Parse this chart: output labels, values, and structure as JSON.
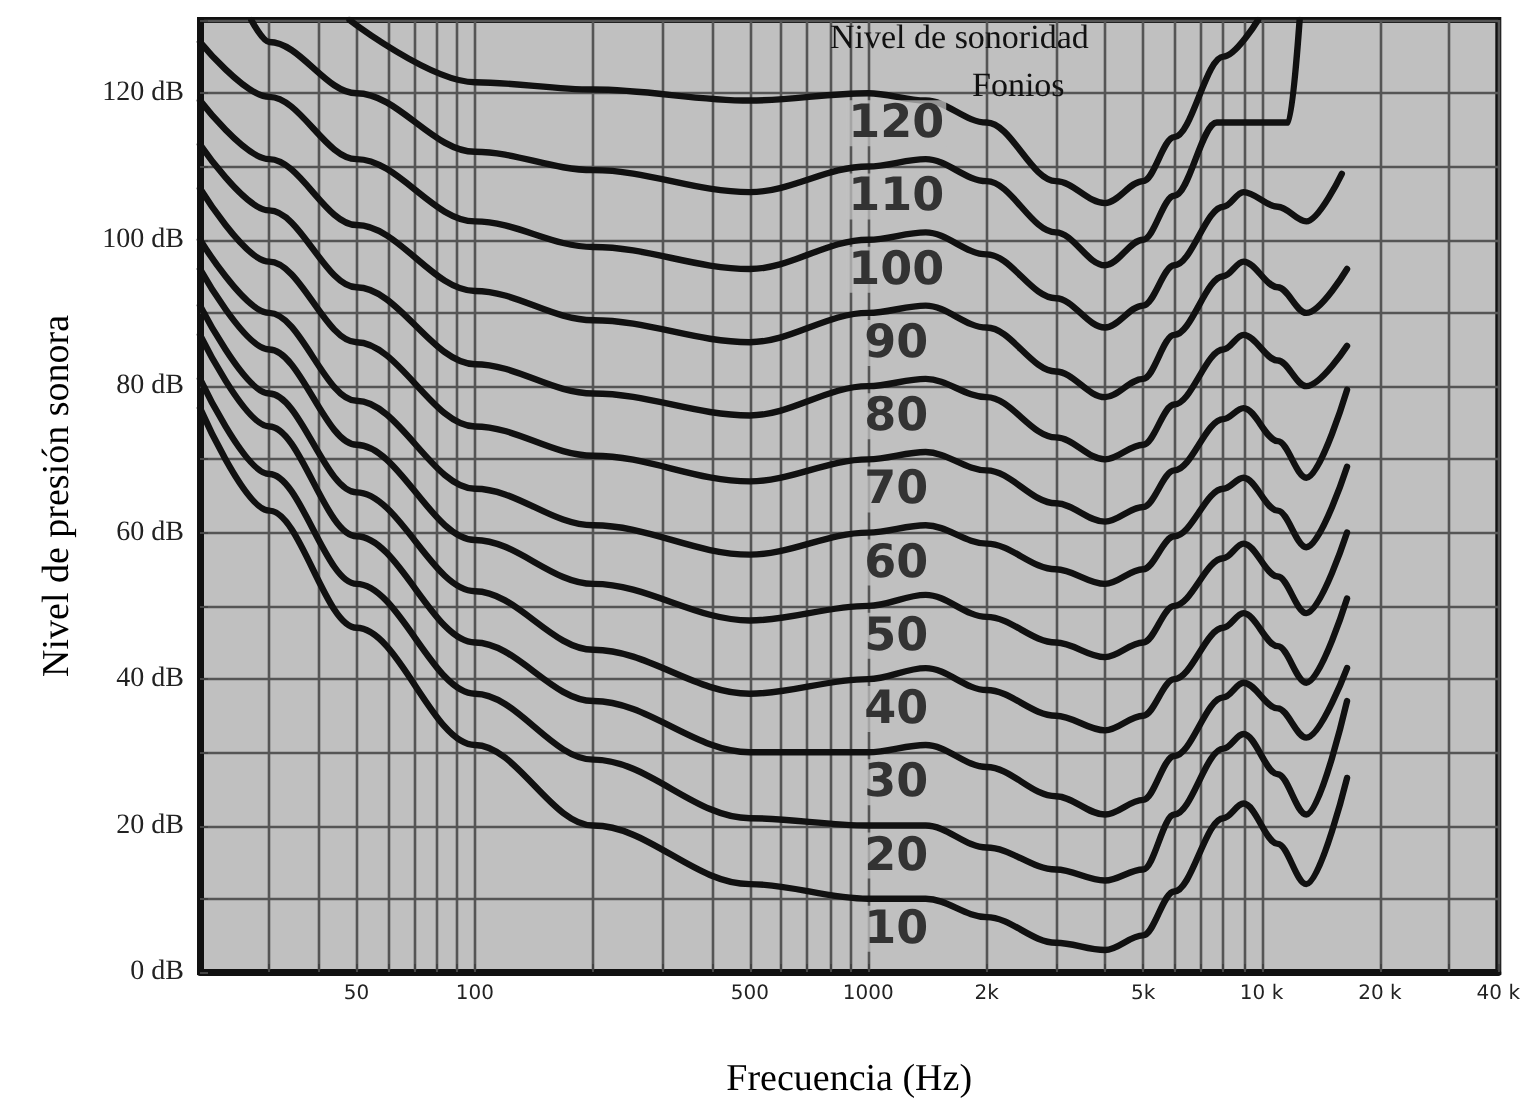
{
  "chart_data": {
    "type": "line",
    "xlabel": "Frecuencia (Hz)",
    "ylabel": "Nivel de presión sonora",
    "annotations": [
      "Nivel de sonoridad",
      "Fonios"
    ],
    "log": "x",
    "grid": true,
    "legend": false,
    "marker": "none",
    "line_style": "solid",
    "xlim": [
      20,
      40000
    ],
    "ylim": [
      0,
      130
    ],
    "xticks": [
      {
        "value": 30,
        "label": null
      },
      {
        "value": 40,
        "label": null
      },
      {
        "value": 50,
        "label": "50"
      },
      {
        "value": 60,
        "label": null
      },
      {
        "value": 70,
        "label": null
      },
      {
        "value": 80,
        "label": null
      },
      {
        "value": 90,
        "label": null
      },
      {
        "value": 100,
        "label": "100"
      },
      {
        "value": 200,
        "label": null
      },
      {
        "value": 300,
        "label": null
      },
      {
        "value": 400,
        "label": null
      },
      {
        "value": 500,
        "label": "500"
      },
      {
        "value": 600,
        "label": null
      },
      {
        "value": 700,
        "label": null
      },
      {
        "value": 800,
        "label": null
      },
      {
        "value": 900,
        "label": null
      },
      {
        "value": 1000,
        "label": "1000"
      },
      {
        "value": 2000,
        "label": "2k"
      },
      {
        "value": 3000,
        "label": null
      },
      {
        "value": 4000,
        "label": null
      },
      {
        "value": 5000,
        "label": "5k"
      },
      {
        "value": 6000,
        "label": null
      },
      {
        "value": 7000,
        "label": null
      },
      {
        "value": 8000,
        "label": null
      },
      {
        "value": 9000,
        "label": null
      },
      {
        "value": 10000,
        "label": "10 k"
      },
      {
        "value": 20000,
        "label": "20 k"
      },
      {
        "value": 30000,
        "label": null
      },
      {
        "value": 40000,
        "label": "40 k"
      }
    ],
    "yticks": [
      {
        "value": 0,
        "label": "0 dB"
      },
      {
        "value": 10,
        "label": null
      },
      {
        "value": 20,
        "label": "20 dB"
      },
      {
        "value": 30,
        "label": null
      },
      {
        "value": 40,
        "label": "40 dB"
      },
      {
        "value": 50,
        "label": null
      },
      {
        "value": 60,
        "label": "60 dB"
      },
      {
        "value": 70,
        "label": null
      },
      {
        "value": 80,
        "label": "80 dB"
      },
      {
        "value": 90,
        "label": null
      },
      {
        "value": 100,
        "label": "100 dB"
      },
      {
        "value": 110,
        "label": null
      },
      {
        "value": 120,
        "label": "120 dB"
      },
      {
        "value": 130,
        "label": null
      }
    ],
    "x": [
      20,
      30,
      50,
      100,
      200,
      500,
      1000,
      1400,
      2000,
      3000,
      4000,
      5000,
      6000,
      8000,
      9000,
      11000,
      13000,
      16500
    ],
    "series": [
      {
        "name": "10",
        "color": "#111111",
        "values": [
          77,
          63,
          47,
          31,
          20,
          12,
          10,
          10,
          7.5,
          4,
          3,
          5,
          11,
          21,
          23,
          17.5,
          12,
          26.5
        ]
      },
      {
        "name": "20",
        "color": "#111111",
        "values": [
          81,
          68,
          53,
          38,
          29,
          21,
          20,
          20,
          17,
          14,
          12.5,
          14,
          21.5,
          30.5,
          32.5,
          27,
          21.5,
          37
        ]
      },
      {
        "name": "30",
        "color": "#111111",
        "values": [
          87,
          74.5,
          59.5,
          45,
          37,
          30,
          30,
          31,
          28,
          24,
          21.5,
          23.5,
          29.5,
          37.5,
          39.5,
          36,
          32,
          41.5
        ]
      },
      {
        "name": "40",
        "color": "#111111",
        "values": [
          91,
          79,
          65.5,
          52,
          44,
          38,
          40,
          41.5,
          38.5,
          35,
          33,
          35,
          40,
          47,
          49,
          44.5,
          39.5,
          51
        ]
      },
      {
        "name": "50",
        "color": "#111111",
        "values": [
          96,
          85,
          72,
          59,
          53,
          48,
          50,
          51.5,
          48.5,
          45,
          43,
          45,
          50,
          56.5,
          58.5,
          54,
          49,
          60
        ]
      },
      {
        "name": "60",
        "color": "#111111",
        "values": [
          100,
          90,
          78,
          66,
          61,
          57,
          60,
          61,
          58.5,
          55,
          53,
          55,
          59.5,
          66,
          67.5,
          63,
          58,
          69
        ]
      },
      {
        "name": "70",
        "color": "#111111",
        "values": [
          107,
          97,
          86,
          74.5,
          70.5,
          67,
          70,
          71,
          68.5,
          64,
          61.5,
          63.5,
          68.5,
          75.5,
          77,
          72.5,
          67.5,
          79.5
        ]
      },
      {
        "name": "80",
        "color": "#111111",
        "values": [
          113,
          104,
          93.5,
          83,
          79,
          76,
          80,
          81,
          78.5,
          73,
          70,
          72,
          77.5,
          85,
          87,
          83.5,
          80,
          85.5
        ]
      },
      {
        "name": "90",
        "color": "#111111",
        "values": [
          119,
          111,
          102,
          93,
          89,
          86,
          90,
          91,
          88,
          82,
          78.5,
          81,
          87,
          95,
          97,
          93.5,
          90,
          96
        ]
      },
      {
        "name": "100",
        "color": "#111111",
        "x": [
          20,
          30,
          50,
          100,
          200,
          500,
          1000,
          1400,
          2000,
          3000,
          4000,
          5000,
          6000,
          8000,
          9000,
          11000,
          13000,
          16000
        ],
        "values": [
          127,
          119.5,
          111,
          102.5,
          99,
          96,
          100,
          101,
          98,
          92,
          88,
          91,
          96.5,
          104.5,
          106.5,
          104.5,
          102.5,
          109
        ]
      },
      {
        "name": "110",
        "color": "#111111",
        "x": [
          27,
          30,
          50,
          100,
          200,
          500,
          1000,
          1400,
          2000,
          3000,
          4000,
          5000,
          6000,
          7700,
          11700,
          12500
        ],
        "values": [
          130,
          127,
          120,
          112,
          109.5,
          106.5,
          110,
          111,
          108,
          101,
          96.5,
          100,
          106,
          116,
          116,
          130
        ]
      },
      {
        "name": "120",
        "color": "#111111",
        "x": [
          48,
          100,
          200,
          500,
          1000,
          1400,
          2000,
          3000,
          4000,
          5000,
          6000,
          8000,
          9800
        ],
        "values": [
          130,
          121.5,
          120.5,
          119,
          120,
          119,
          116,
          108,
          105,
          108,
          114,
          125,
          130
        ]
      }
    ]
  }
}
